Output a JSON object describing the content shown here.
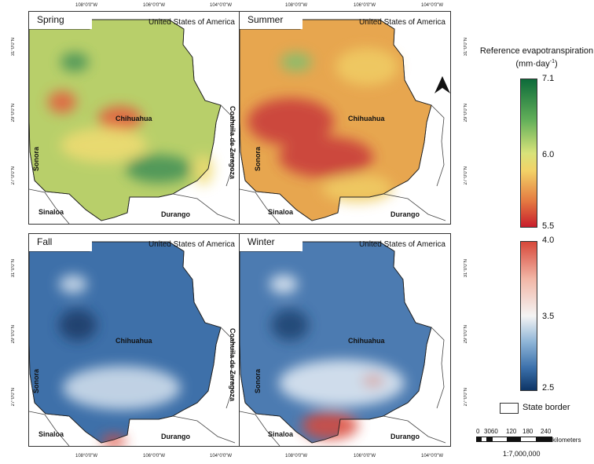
{
  "map_title": "",
  "panels": [
    {
      "season": "Spring",
      "colors": {
        "base": "#b8cf6a",
        "accent": "#3f8f56",
        "warm": "#e55a3c",
        "soft": "#f1dc72"
      }
    },
    {
      "season": "Summer",
      "colors": {
        "base": "#e7a64f",
        "accent": "#7fc06f",
        "warm": "#c8383a",
        "soft": "#f0cd65"
      }
    },
    {
      "season": "Fall",
      "colors": {
        "base": "#3e70a9",
        "accent": "#1d3b66",
        "warm": "#d84a3b",
        "soft": "#d7e3ef"
      }
    },
    {
      "season": "Winter",
      "colors": {
        "base": "#4c7bb1",
        "accent": "#1e426f",
        "warm": "#d94a3b",
        "soft": "#e6eef6"
      }
    }
  ],
  "labels": {
    "country": "United States of America",
    "state_main": "Chihuahua",
    "sonora": "Sonora",
    "sinaloa": "Sinaloa",
    "durango": "Durango",
    "coahuila": "Coahuila de Zaragoza"
  },
  "graticule": {
    "top": [
      "108°0'0\"W",
      "106°0'0\"W",
      "104°0'0\"W"
    ],
    "bottom": [
      "108°0'0\"W",
      "106°0'0\"W",
      "104°0'0\"W"
    ],
    "left": [
      "31°0'0\"N",
      "29°0'0\"N",
      "27°0'0\"N"
    ],
    "right": [
      "31°0'0\"N",
      "29°0'0\"N",
      "27°0'0\"N"
    ]
  },
  "legend": {
    "title_line1": "Reference evapotranspiration",
    "title_line2": "(mm·day",
    "title_sup": "-1",
    "title_close": ")",
    "warm_scale": {
      "max": "7.1",
      "mid": "6.0",
      "min": "5.5",
      "colors": [
        "#0d6b3a",
        "#64b05a",
        "#d8e37a",
        "#f2d267",
        "#e57c42",
        "#c81e2c"
      ]
    },
    "cool_scale": {
      "max": "4.0",
      "mid": "3.5",
      "min": "2.5",
      "colors": [
        "#d7483a",
        "#f2b6a6",
        "#f4f4f4",
        "#8cb3d6",
        "#3b70ab",
        "#0d3566"
      ]
    },
    "state_border": "State border"
  },
  "scale": {
    "values": [
      "0",
      "3060",
      "120",
      "180",
      "240"
    ],
    "unit": "kilometers",
    "ratio": "1:7,000,000"
  },
  "north_arrow": "north-arrow"
}
